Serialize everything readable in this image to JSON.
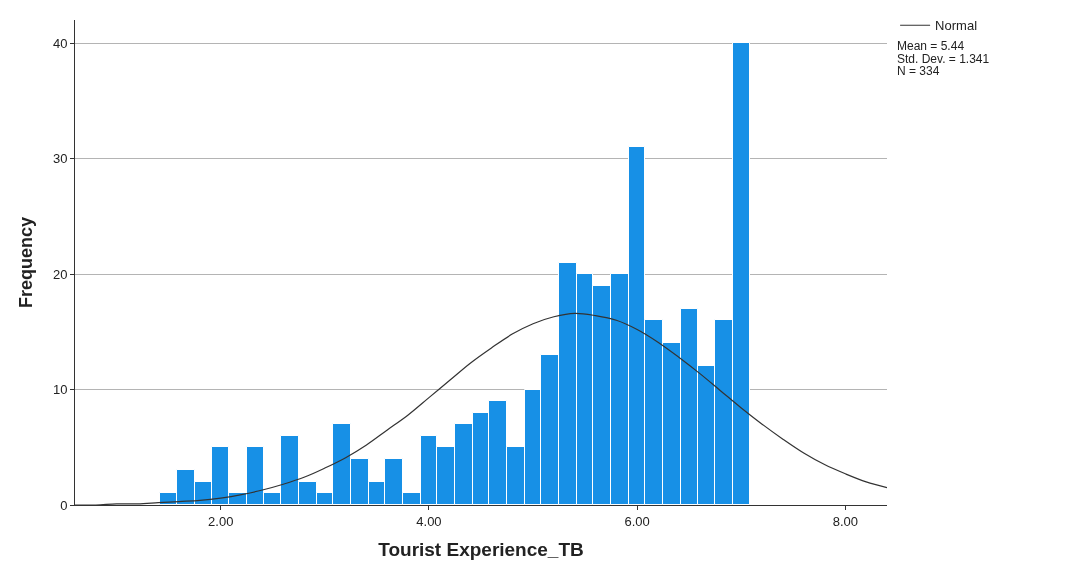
{
  "chart_data": {
    "type": "histogram",
    "xlabel": "Tourist Experience_TB",
    "ylabel": "Frequency",
    "bins": [
      1.42,
      1.58,
      1.75,
      1.92,
      2.08,
      2.25,
      2.42,
      2.58,
      2.75,
      2.92,
      3.08,
      3.25,
      3.42,
      3.58,
      3.75,
      3.92,
      4.08,
      4.25,
      4.42,
      4.58,
      4.75,
      4.92,
      5.08,
      5.25,
      5.42,
      5.58,
      5.75,
      5.92,
      6.08,
      6.25,
      6.42,
      6.58,
      6.75,
      6.92,
      7.08
    ],
    "series": [
      {
        "color": "#1790e6",
        "values": [
          1,
          3,
          2,
          5,
          1,
          5,
          1,
          6,
          2,
          1,
          7,
          4,
          2,
          4,
          1,
          6,
          5,
          7,
          8,
          9,
          5,
          10,
          13,
          21,
          20,
          19,
          20,
          31,
          16,
          14,
          17,
          12,
          16,
          40
        ]
      },
      {
        "type": "line",
        "name": "Normal",
        "color": "#333333",
        "x": [
          0.6,
          0.8,
          1.0,
          1.2,
          1.4,
          1.6,
          1.8,
          2.0,
          2.2,
          2.4,
          2.6,
          2.8,
          3.0,
          3.2,
          3.4,
          3.6,
          3.8,
          4.0,
          4.2,
          4.4,
          4.6,
          4.8,
          5.0,
          5.2,
          5.4,
          5.6,
          5.8,
          6.0,
          6.2,
          6.4,
          6.6,
          6.8,
          7.0,
          7.2,
          7.4,
          7.6,
          7.8,
          8.0,
          8.2,
          8.4
        ],
        "values": [
          0.0,
          0.0,
          0.1,
          0.1,
          0.2,
          0.3,
          0.4,
          0.6,
          0.9,
          1.3,
          1.8,
          2.4,
          3.2,
          4.1,
          5.2,
          6.5,
          7.8,
          9.3,
          10.8,
          12.3,
          13.6,
          14.8,
          15.7,
          16.3,
          16.6,
          16.4,
          16.0,
          15.2,
          14.1,
          12.8,
          11.4,
          9.9,
          8.4,
          7.0,
          5.7,
          4.5,
          3.5,
          2.7,
          2.0,
          1.5
        ]
      }
    ],
    "xlim": [
      0.6,
      8.4
    ],
    "xticks": [
      {
        "value": 2,
        "label": "2.00"
      },
      {
        "value": 4,
        "label": "4.00"
      },
      {
        "value": 6,
        "label": "6.00"
      },
      {
        "value": 8,
        "label": "8.00"
      }
    ],
    "ylim": [
      0,
      42
    ],
    "yticks": [
      0,
      10,
      20,
      30,
      40
    ],
    "grid": "y",
    "legend": "top right",
    "annotations": [
      "Mean = 5.44",
      "Std. Dev. = 1.341",
      "N = 334"
    ]
  }
}
